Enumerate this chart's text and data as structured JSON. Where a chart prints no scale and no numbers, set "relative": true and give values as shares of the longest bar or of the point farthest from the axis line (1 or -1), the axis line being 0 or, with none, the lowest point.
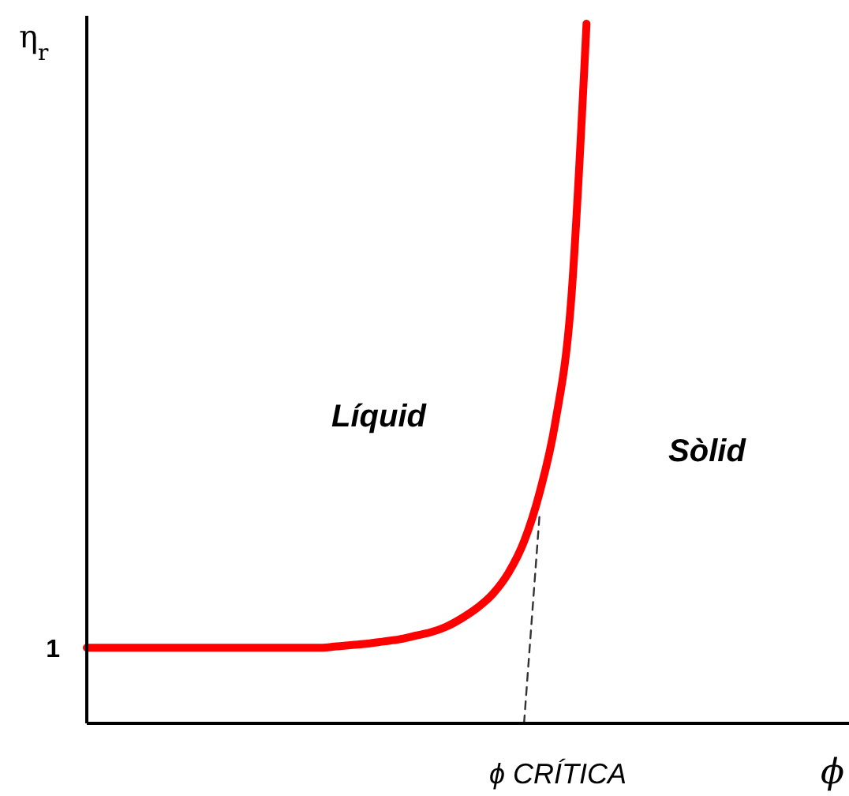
{
  "chart_data": {
    "type": "line",
    "relative": true,
    "xlabel": "ϕ",
    "ylabel": "η$_{r}$",
    "categories": [
      null,
      null,
      null,
      null,
      null,
      null,
      null,
      null,
      null,
      null,
      null,
      null,
      null,
      null,
      null,
      null,
      null,
      null,
      null,
      null,
      null,
      null,
      null,
      null,
      null,
      null,
      null,
      null,
      null,
      null,
      null,
      null,
      null,
      null,
      null,
      null,
      null,
      null,
      null,
      null,
      null,
      null,
      null,
      null,
      null,
      null,
      null,
      null,
      null
    ],
    "series": [
      {
        "color": "#ff0000",
        "line_style": "solid",
        "values": [
          0.108,
          0.108,
          0.108,
          0.108,
          0.108,
          0.108,
          0.108,
          0.108,
          0.108,
          0.108,
          0.108,
          0.108,
          0.108,
          0.108,
          0.108,
          0.108,
          0.11,
          0.112,
          0.114,
          0.117,
          0.12,
          0.125,
          0.13,
          0.138,
          0.15,
          0.165,
          0.185,
          0.215,
          0.26,
          0.33,
          0.43,
          0.6,
          1,
          null,
          null,
          null,
          null,
          null,
          null,
          null,
          null,
          null,
          null,
          null,
          null,
          null,
          null,
          null,
          null
        ]
      },
      {
        "color": "#333333",
        "line_style": "dashed",
        "values": [
          null,
          null,
          null,
          null,
          null,
          null,
          null,
          null,
          null,
          null,
          null,
          null,
          null,
          null,
          null,
          null,
          null,
          null,
          null,
          null,
          null,
          null,
          null,
          null,
          null,
          null,
          null,
          null,
          0,
          0.3,
          null,
          null,
          null,
          null,
          null,
          null,
          null,
          null,
          null,
          null,
          null,
          null,
          null,
          null,
          null,
          null,
          null,
          null,
          null
        ]
      }
    ],
    "annotations": [
      "Líquid",
      "Sòlid",
      "1",
      "ϕ CRÍTICA"
    ]
  }
}
